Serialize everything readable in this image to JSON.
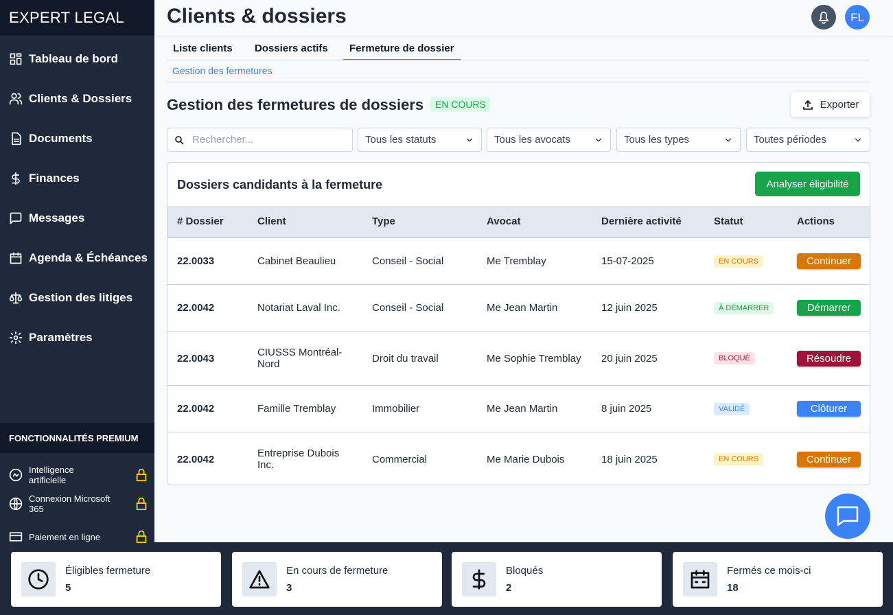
{
  "sidebar": {
    "brand": "EXPERT LEGAL",
    "nav": [
      "Tableau de bord",
      "Clients & Dossiers",
      "Documents",
      "Finances",
      "Messages",
      "Agenda & Échéances",
      "Gestion des litiges",
      "Paramètres"
    ],
    "premium_title": "FONCTIONNALITÉS PREMIUM",
    "premium": [
      "Intelligence artificielle",
      "Connexion Microsoft 365",
      "Paiement en ligne"
    ]
  },
  "header": {
    "title": "Clients & dossiers",
    "avatar": "FL"
  },
  "tabs": [
    "Liste clients",
    "Dossiers actifs",
    "Fermeture de dossier"
  ],
  "breadcrumb": "Gestion des fermetures",
  "section": {
    "title": "Gestion des fermetures de dossiers",
    "badge": "EN COURS",
    "export": "Exporter"
  },
  "filters": {
    "search_placeholder": "Rechercher...",
    "selects": [
      "Tous les statuts",
      "Tous les avocats",
      "Tous les types",
      "Toutes périodes"
    ]
  },
  "table": {
    "title": "Dossiers candidants à la fermeture",
    "button": "Analyser éligibilité",
    "columns": [
      "# Dossier",
      "Client",
      "Type",
      "Avocat",
      "Dernière activité",
      "Statut",
      "Actions"
    ],
    "rows": [
      [
        "22.0033",
        "Cabinet Beaulieu",
        "Conseil - Social",
        "Me Tremblay",
        "15-07-2025",
        "EN COURS",
        "Continuer"
      ],
      [
        "22.0042",
        "Notariat Laval Inc.",
        "Conseil - Social",
        "Me Jean Martin",
        "12 juin 2025",
        "À DÉMARRER",
        "Démarrer"
      ],
      [
        "22.0043",
        "CIUSSS Montréal-Nord",
        "Droit du travail",
        "Me Sophie Tremblay",
        "20 juin 2025",
        "BLOQUÉ",
        "Résoudre"
      ],
      [
        "22.0042",
        "Famille Tremblay",
        "Immobilier",
        "Me Jean Martin",
        "8 juin 2025",
        "VALIDÉ",
        "Clôturer"
      ],
      [
        "22.0042",
        "Entreprise Dubois Inc.",
        "Commercial",
        "Me Marie Dubois",
        "18 juin 2025",
        "EN COURS",
        "Continuer"
      ]
    ]
  },
  "stats": [
    {
      "label": "Éligibles fermeture",
      "value": 5
    },
    {
      "label": "En cours de fermeture",
      "value": 3
    },
    {
      "label": "Bloqués",
      "value": 2
    },
    {
      "label": "Fermés ce mois-ci",
      "value": 18
    }
  ]
}
